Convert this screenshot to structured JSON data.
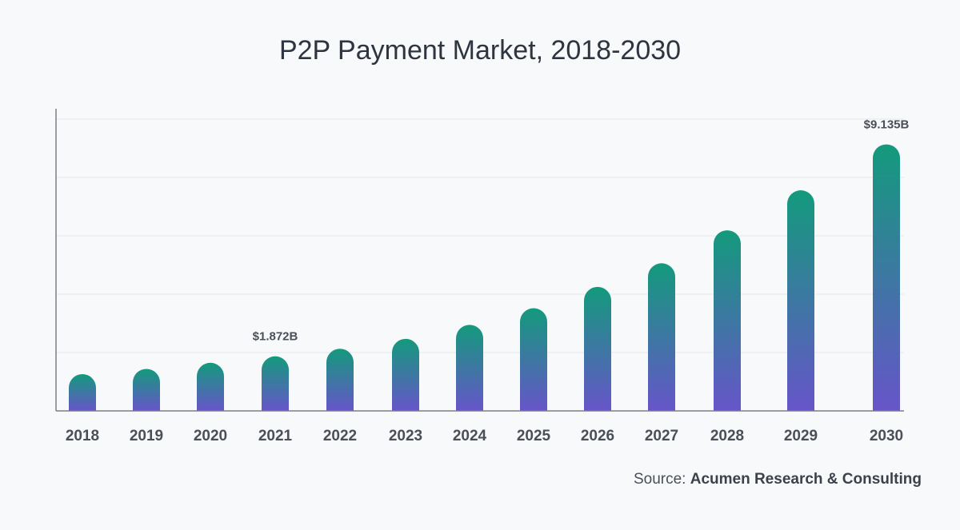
{
  "title": "P2P Payment Market, 2018-2030",
  "source": {
    "prefix": "Source: ",
    "name": "Acumen Research & Consulting"
  },
  "colors": {
    "bar_top": "#139a7c",
    "bar_bottom": "#6755c9",
    "grid": "#e6e8ec",
    "axis": "#7a7f88",
    "text": "#4a4f58"
  },
  "chart_data": {
    "type": "bar",
    "title": "P2P Payment Market, 2018-2030",
    "categories": [
      "2018",
      "2019",
      "2020",
      "2021",
      "2022",
      "2023",
      "2024",
      "2025",
      "2026",
      "2027",
      "2028",
      "2029",
      "2030"
    ],
    "values": [
      1.26,
      1.44,
      1.65,
      1.872,
      2.13,
      2.47,
      2.95,
      3.52,
      4.25,
      5.06,
      6.19,
      7.56,
      9.135
    ],
    "data_labels": [
      {
        "index": 3,
        "text": "$1.872B"
      },
      {
        "index": 12,
        "text": "$9.135B"
      }
    ],
    "ylim": [
      0,
      10
    ],
    "grid": true,
    "xlabel": "",
    "ylabel": ""
  }
}
